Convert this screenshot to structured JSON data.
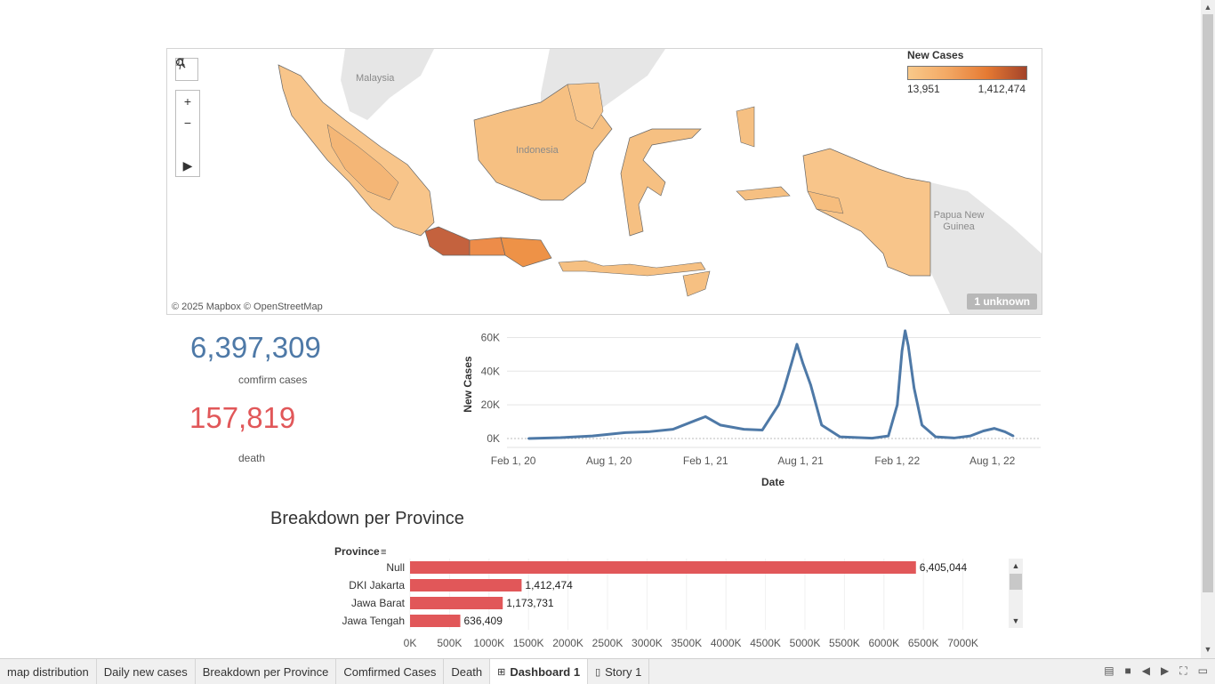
{
  "map": {
    "legend_title": "New Cases",
    "legend_min": "13,951",
    "legend_max": "1,412,474",
    "credit": "© 2025 Mapbox © OpenStreetMap",
    "unknown_badge": "1 unknown",
    "labels": {
      "malaysia": "Malaysia",
      "indonesia": "Indonesia",
      "png": "Papua New Guinea"
    },
    "colors": {
      "low": "#f9c98a",
      "mid": "#f3a864",
      "high": "#e57a33",
      "max": "#c4623e"
    }
  },
  "kpi": {
    "confirmed_value": "6,397,309",
    "confirmed_label": "comfirm cases",
    "confirmed_color": "#4e79a7",
    "death_value": "157,819",
    "death_label": "death",
    "death_color": "#e15759"
  },
  "chart_data": [
    {
      "type": "line",
      "xlabel": "Date",
      "ylabel": "New Cases",
      "x_ticks": [
        "Feb 1, 20",
        "Aug 1, 20",
        "Feb 1, 21",
        "Aug 1, 21",
        "Feb 1, 22",
        "Aug 1, 22"
      ],
      "y_ticks": [
        "0K",
        "20K",
        "40K",
        "60K"
      ],
      "ylim": [
        0,
        65000
      ],
      "x": [
        "2020-03-01",
        "2020-05-01",
        "2020-07-01",
        "2020-09-01",
        "2020-10-15",
        "2020-12-01",
        "2021-01-15",
        "2021-02-01",
        "2021-03-01",
        "2021-04-15",
        "2021-05-20",
        "2021-06-20",
        "2021-07-01",
        "2021-07-15",
        "2021-07-25",
        "2021-08-05",
        "2021-08-20",
        "2021-09-10",
        "2021-10-15",
        "2021-12-15",
        "2022-01-15",
        "2022-02-01",
        "2022-02-10",
        "2022-02-16",
        "2022-02-22",
        "2022-03-05",
        "2022-03-20",
        "2022-04-15",
        "2022-05-20",
        "2022-06-20",
        "2022-07-15",
        "2022-08-05",
        "2022-08-25",
        "2022-09-10"
      ],
      "values": [
        0,
        500,
        1500,
        3500,
        4000,
        5500,
        11000,
        13000,
        8000,
        5500,
        5000,
        20000,
        30000,
        45000,
        56000,
        45000,
        32000,
        8000,
        1000,
        200,
        1500,
        20000,
        52000,
        64000,
        55000,
        30000,
        8000,
        1000,
        300,
        1500,
        4500,
        6000,
        4000,
        1500
      ],
      "grid": true,
      "color": "#4e79a7"
    },
    {
      "type": "bar",
      "title": "Breakdown per Province",
      "xlabel": "",
      "ylabel": "Province",
      "categories": [
        "Null",
        "DKI Jakarta",
        "Jawa Barat",
        "Jawa Tengah"
      ],
      "values": [
        6405044,
        1412474,
        1173731,
        636409
      ],
      "value_labels": [
        "6,405,044",
        "1,412,474",
        "1,173,731",
        "636,409"
      ],
      "x_ticks": [
        "0K",
        "500K",
        "1000K",
        "1500K",
        "2000K",
        "2500K",
        "3000K",
        "3500K",
        "4000K",
        "4500K",
        "5000K",
        "5500K",
        "6000K",
        "6500K",
        "7000K"
      ],
      "xlim": [
        0,
        7500000
      ],
      "color": "#e15759"
    }
  ],
  "tabs": [
    {
      "label": "map distribution"
    },
    {
      "label": "Daily new cases"
    },
    {
      "label": "Breakdown per Province"
    },
    {
      "label": "Comfirmed Cases"
    },
    {
      "label": "Death"
    },
    {
      "label": "Dashboard 1",
      "icon": "dashboard-icon",
      "active": true
    },
    {
      "label": "Story 1",
      "icon": "story-icon"
    }
  ]
}
